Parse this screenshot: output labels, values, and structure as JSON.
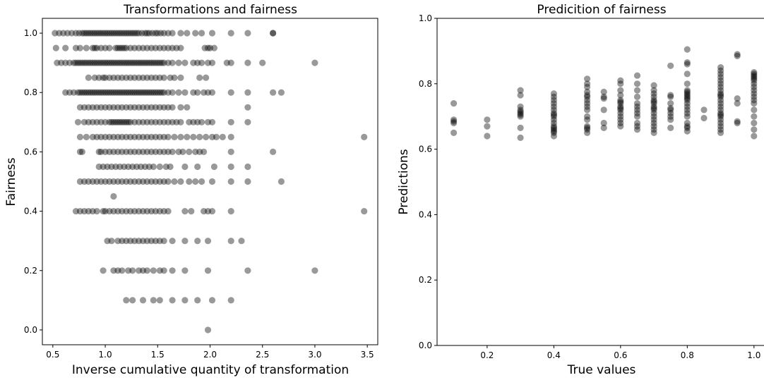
{
  "chart_data": [
    {
      "type": "scatter",
      "title": "Transformations and fairness",
      "xlabel": "Inverse cumulative quantity of transformation",
      "ylabel": "Fairness",
      "xlim": [
        0.4,
        3.6
      ],
      "ylim": [
        -0.05,
        1.05
      ],
      "xticks": [
        "0.5",
        "1.0",
        "1.5",
        "2.0",
        "2.5",
        "3.0",
        "3.5"
      ],
      "yticks": [
        "0.0",
        "0.2",
        "0.4",
        "0.6",
        "0.8",
        "1.0"
      ],
      "grid": false,
      "frame": "box",
      "marker_color": "#000000",
      "marker_alpha": 0.4,
      "rows": [
        {
          "y": 1.0,
          "x": [
            0.52,
            0.56,
            0.6,
            0.64,
            0.68,
            0.72,
            0.75,
            0.78,
            0.8,
            0.82,
            0.84,
            0.86,
            0.88,
            0.9,
            0.92,
            0.94,
            0.96,
            0.98,
            1.0,
            1.02,
            1.04,
            1.06,
            1.08,
            1.1,
            1.12,
            1.14,
            1.16,
            1.18,
            1.2,
            1.22,
            1.24,
            1.26,
            1.28,
            1.3,
            1.32,
            1.35,
            1.38,
            1.4,
            1.42,
            1.45,
            1.48,
            1.5,
            1.53,
            1.56,
            1.6,
            1.64,
            1.72,
            1.78,
            1.86,
            1.92,
            2.02,
            2.2,
            2.36,
            2.6,
            2.6
          ]
        },
        {
          "y": 0.95,
          "x": [
            0.53,
            0.62,
            0.72,
            0.76,
            0.82,
            0.88,
            0.9,
            0.92,
            0.96,
            1.0,
            1.04,
            1.1,
            1.12,
            1.14,
            1.16,
            1.18,
            1.2,
            1.24,
            1.28,
            1.32,
            1.36,
            1.4,
            1.44,
            1.48,
            1.52,
            1.56,
            1.6,
            1.64,
            1.68,
            1.72,
            1.95,
            1.98,
            2.0,
            2.04
          ]
        },
        {
          "y": 0.9,
          "x": [
            0.54,
            0.58,
            0.62,
            0.66,
            0.7,
            0.72,
            0.74,
            0.76,
            0.78,
            0.8,
            0.82,
            0.84,
            0.86,
            0.88,
            0.9,
            0.92,
            0.94,
            0.96,
            0.98,
            1.0,
            1.02,
            1.04,
            1.06,
            1.08,
            1.1,
            1.12,
            1.14,
            1.16,
            1.18,
            1.2,
            1.22,
            1.24,
            1.26,
            1.28,
            1.3,
            1.32,
            1.34,
            1.36,
            1.38,
            1.4,
            1.42,
            1.44,
            1.46,
            1.48,
            1.5,
            1.52,
            1.54,
            1.56,
            1.6,
            1.64,
            1.7,
            1.76,
            1.84,
            1.88,
            1.92,
            1.98,
            2.02,
            2.16,
            2.2,
            2.36,
            2.5,
            3.0
          ]
        },
        {
          "y": 0.85,
          "x": [
            0.84,
            0.9,
            0.94,
            0.98,
            1.0,
            1.04,
            1.08,
            1.12,
            1.16,
            1.2,
            1.24,
            1.28,
            1.32,
            1.36,
            1.4,
            1.44,
            1.48,
            1.52,
            1.56,
            1.62,
            1.66,
            1.72,
            1.9,
            1.96
          ]
        },
        {
          "y": 0.8,
          "x": [
            0.62,
            0.66,
            0.7,
            0.74,
            0.76,
            0.78,
            0.8,
            0.82,
            0.84,
            0.86,
            0.88,
            0.9,
            0.92,
            0.94,
            0.96,
            0.98,
            1.0,
            1.02,
            1.04,
            1.06,
            1.08,
            1.1,
            1.12,
            1.14,
            1.16,
            1.18,
            1.2,
            1.22,
            1.24,
            1.26,
            1.28,
            1.3,
            1.32,
            1.34,
            1.36,
            1.38,
            1.4,
            1.42,
            1.44,
            1.46,
            1.48,
            1.5,
            1.52,
            1.54,
            1.56,
            1.6,
            1.64,
            1.7,
            1.76,
            1.84,
            1.88,
            1.94,
            1.98,
            2.02,
            2.2,
            2.36,
            2.6,
            2.68
          ]
        },
        {
          "y": 0.75,
          "x": [
            0.76,
            0.8,
            0.84,
            0.88,
            0.92,
            0.96,
            1.0,
            1.04,
            1.08,
            1.12,
            1.16,
            1.2,
            1.24,
            1.28,
            1.32,
            1.36,
            1.4,
            1.44,
            1.48,
            1.52,
            1.56,
            1.6,
            1.64,
            1.72,
            1.78,
            2.36
          ]
        },
        {
          "y": 0.7,
          "x": [
            0.74,
            0.8,
            0.84,
            0.88,
            0.92,
            0.96,
            1.0,
            1.04,
            1.06,
            1.08,
            1.1,
            1.12,
            1.14,
            1.16,
            1.18,
            1.2,
            1.22,
            1.24,
            1.28,
            1.32,
            1.36,
            1.4,
            1.44,
            1.48,
            1.52,
            1.56,
            1.6,
            1.64,
            1.68,
            1.72,
            1.8,
            1.84,
            1.88,
            1.92,
            1.98,
            2.02,
            2.2,
            2.36
          ]
        },
        {
          "y": 0.65,
          "x": [
            0.76,
            0.82,
            0.88,
            0.92,
            0.96,
            1.0,
            1.04,
            1.08,
            1.12,
            1.16,
            1.2,
            1.24,
            1.28,
            1.32,
            1.36,
            1.4,
            1.44,
            1.48,
            1.52,
            1.56,
            1.6,
            1.66,
            1.72,
            1.78,
            1.84,
            1.9,
            1.96,
            2.02,
            2.06,
            2.12,
            2.2,
            3.47
          ]
        },
        {
          "y": 0.6,
          "x": [
            0.76,
            0.78,
            0.94,
            0.96,
            1.0,
            1.04,
            1.08,
            1.12,
            1.16,
            1.2,
            1.24,
            1.28,
            1.32,
            1.36,
            1.4,
            1.44,
            1.48,
            1.52,
            1.56,
            1.6,
            1.64,
            1.7,
            1.74,
            1.8,
            1.86,
            1.9,
            1.94,
            2.2,
            2.6
          ]
        },
        {
          "y": 0.55,
          "x": [
            0.94,
            0.98,
            1.02,
            1.06,
            1.1,
            1.14,
            1.18,
            1.22,
            1.26,
            1.3,
            1.34,
            1.38,
            1.42,
            1.46,
            1.52,
            1.58,
            1.62,
            1.76,
            1.88,
            2.04,
            2.2,
            2.36
          ]
        },
        {
          "y": 0.5,
          "x": [
            0.76,
            0.8,
            0.84,
            0.88,
            0.92,
            0.96,
            1.0,
            1.04,
            1.08,
            1.12,
            1.16,
            1.2,
            1.24,
            1.28,
            1.32,
            1.36,
            1.4,
            1.44,
            1.48,
            1.52,
            1.56,
            1.6,
            1.66,
            1.72,
            1.8,
            1.86,
            1.92,
            2.02,
            2.2,
            2.36,
            2.68
          ]
        },
        {
          "y": 0.45,
          "x": [
            1.08
          ]
        },
        {
          "y": 0.4,
          "x": [
            0.72,
            0.76,
            0.8,
            0.84,
            0.88,
            0.92,
            0.98,
            1.0,
            1.04,
            1.08,
            1.12,
            1.16,
            1.2,
            1.24,
            1.28,
            1.32,
            1.36,
            1.4,
            1.44,
            1.48,
            1.52,
            1.56,
            1.6,
            1.76,
            1.82,
            1.94,
            1.98,
            2.02,
            2.2,
            3.47
          ]
        },
        {
          "y": 0.3,
          "x": [
            1.02,
            1.06,
            1.12,
            1.16,
            1.2,
            1.24,
            1.28,
            1.32,
            1.36,
            1.4,
            1.44,
            1.48,
            1.52,
            1.56,
            1.64,
            1.76,
            1.88,
            1.98,
            2.2,
            2.3
          ]
        },
        {
          "y": 0.2,
          "x": [
            0.98,
            1.08,
            1.12,
            1.16,
            1.22,
            1.26,
            1.32,
            1.36,
            1.4,
            1.46,
            1.52,
            1.56,
            1.64,
            1.76,
            1.98,
            2.36,
            3.0
          ]
        },
        {
          "y": 0.1,
          "x": [
            1.2,
            1.26,
            1.36,
            1.46,
            1.52,
            1.64,
            1.76,
            1.88,
            2.02,
            2.2
          ]
        },
        {
          "y": 0.0,
          "x": [
            1.98
          ]
        }
      ]
    },
    {
      "type": "scatter",
      "title": "Predicition of fairness",
      "xlabel": "True values",
      "ylabel": "Predictions",
      "xlim": [
        0.05,
        1.03
      ],
      "ylim": [
        0.0,
        1.0
      ],
      "xticks": [
        "0.2",
        "0.4",
        "0.6",
        "0.8",
        "1.0"
      ],
      "yticks": [
        "0.0",
        "0.2",
        "0.4",
        "0.6",
        "0.8",
        "1.0"
      ],
      "grid": false,
      "frame": "left-bottom-top",
      "marker_color": "#000000",
      "marker_alpha": 0.4,
      "columns": [
        {
          "x": 0.1,
          "y": [
            0.65,
            0.68,
            0.685,
            0.69,
            0.74
          ]
        },
        {
          "x": 0.2,
          "y": [
            0.64,
            0.67,
            0.69
          ]
        },
        {
          "x": 0.3,
          "y": [
            0.635,
            0.665,
            0.7,
            0.705,
            0.71,
            0.715,
            0.72,
            0.73,
            0.765,
            0.78
          ]
        },
        {
          "x": 0.4,
          "y": [
            0.64,
            0.65,
            0.655,
            0.66,
            0.665,
            0.67,
            0.68,
            0.69,
            0.7,
            0.705,
            0.71,
            0.72,
            0.73,
            0.74,
            0.75,
            0.76,
            0.77
          ]
        },
        {
          "x": 0.5,
          "y": [
            0.65,
            0.66,
            0.665,
            0.67,
            0.69,
            0.7,
            0.72,
            0.73,
            0.74,
            0.75,
            0.76,
            0.765,
            0.775,
            0.79,
            0.8,
            0.815
          ]
        },
        {
          "x": 0.55,
          "y": [
            0.665,
            0.68,
            0.72,
            0.755,
            0.76,
            0.775
          ]
        },
        {
          "x": 0.6,
          "y": [
            0.67,
            0.68,
            0.69,
            0.7,
            0.71,
            0.72,
            0.725,
            0.73,
            0.74,
            0.745,
            0.75,
            0.765,
            0.78,
            0.8,
            0.81
          ]
        },
        {
          "x": 0.65,
          "y": [
            0.66,
            0.67,
            0.68,
            0.7,
            0.71,
            0.72,
            0.73,
            0.74,
            0.76,
            0.78,
            0.8,
            0.825
          ]
        },
        {
          "x": 0.7,
          "y": [
            0.65,
            0.66,
            0.67,
            0.68,
            0.69,
            0.7,
            0.71,
            0.72,
            0.725,
            0.73,
            0.74,
            0.745,
            0.75,
            0.76,
            0.77,
            0.78,
            0.795
          ]
        },
        {
          "x": 0.75,
          "y": [
            0.665,
            0.69,
            0.7,
            0.71,
            0.72,
            0.725,
            0.74,
            0.76,
            0.765,
            0.855
          ]
        },
        {
          "x": 0.8,
          "y": [
            0.655,
            0.665,
            0.67,
            0.68,
            0.7,
            0.71,
            0.72,
            0.73,
            0.74,
            0.75,
            0.755,
            0.76,
            0.765,
            0.77,
            0.775,
            0.78,
            0.8,
            0.83,
            0.86,
            0.865,
            0.905
          ]
        },
        {
          "x": 0.85,
          "y": [
            0.695,
            0.72
          ]
        },
        {
          "x": 0.9,
          "y": [
            0.65,
            0.66,
            0.67,
            0.68,
            0.69,
            0.7,
            0.705,
            0.71,
            0.72,
            0.73,
            0.74,
            0.75,
            0.76,
            0.765,
            0.77,
            0.78,
            0.79,
            0.8,
            0.81,
            0.82,
            0.83,
            0.84,
            0.85
          ]
        },
        {
          "x": 0.95,
          "y": [
            0.68,
            0.685,
            0.74,
            0.755,
            0.885,
            0.89
          ]
        },
        {
          "x": 1.0,
          "y": [
            0.64,
            0.66,
            0.68,
            0.7,
            0.72,
            0.74,
            0.75,
            0.76,
            0.77,
            0.78,
            0.79,
            0.8,
            0.81,
            0.815,
            0.82,
            0.825,
            0.83,
            0.835
          ]
        }
      ]
    }
  ]
}
